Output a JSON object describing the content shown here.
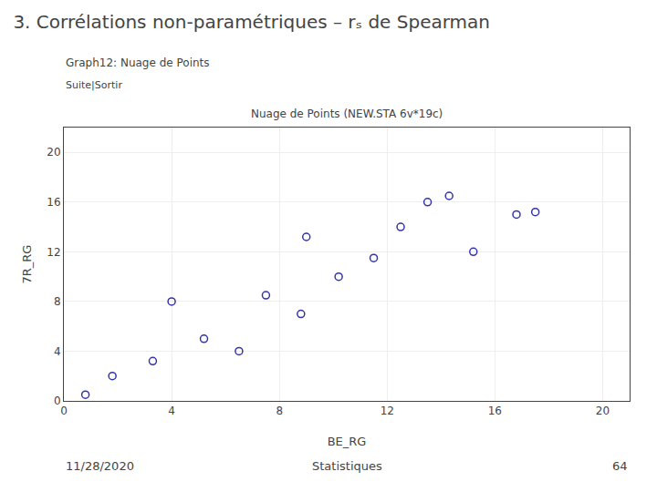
{
  "chart_data": {
    "type": "scatter",
    "title": "3. Corrélations non-paramétriques – rₛ de Spearman",
    "subtitle": "Nuage de Points (NEW.STA 6v*19c)",
    "annotations": [
      {
        "text": "Graph12: Nuage de Points"
      },
      {
        "text": "Suite|Sortir"
      },
      {
        "text": "11/28/2020"
      },
      {
        "text": "Statistiques"
      },
      {
        "text": "64"
      }
    ],
    "x_label": "BE_RG",
    "y_label": "7R_RG",
    "x": [
      0.8,
      1.8,
      3.3,
      4.0,
      5.2,
      6.5,
      7.5,
      8.8,
      9.0,
      10.2,
      11.5,
      12.5,
      13.5,
      14.3,
      15.2,
      16.8,
      17.5
    ],
    "values": [
      0.5,
      2.0,
      3.2,
      8.0,
      5.0,
      4.0,
      8.5,
      7.0,
      13.2,
      10.0,
      11.5,
      14.0,
      16.0,
      16.5,
      12.0,
      15.0,
      15.2
    ],
    "color": "#3333aa",
    "marker": "circle-open",
    "xlim": [
      0,
      21
    ],
    "ylim": [
      0,
      22
    ],
    "xticks": [
      0,
      4,
      8,
      12,
      16,
      20
    ],
    "yticks": [
      0,
      4,
      8,
      12,
      16,
      20
    ],
    "grid": true
  }
}
